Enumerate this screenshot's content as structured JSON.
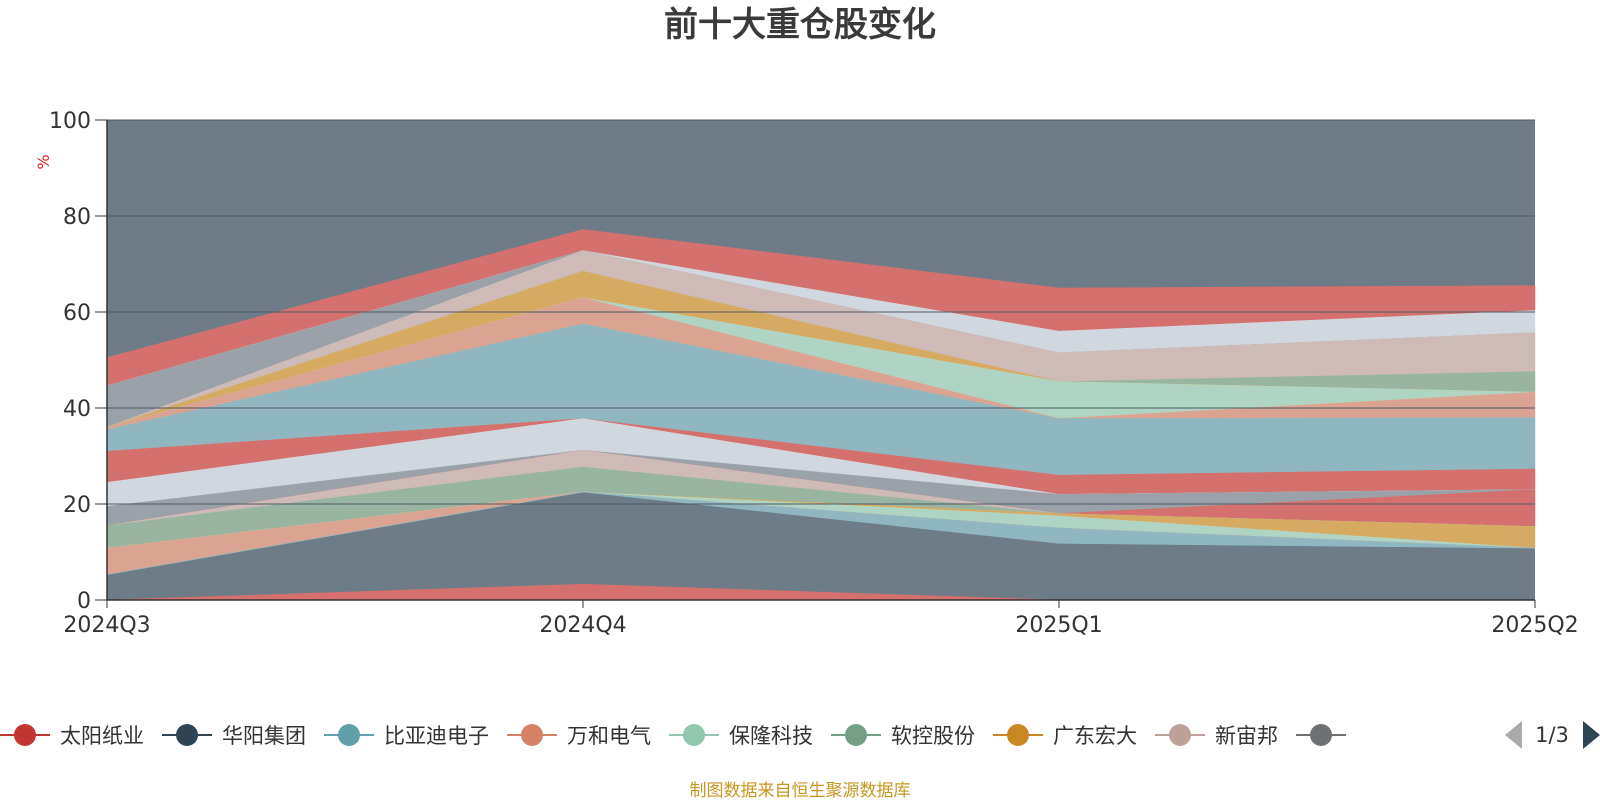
{
  "chart_data": {
    "type": "area",
    "title": "前十大重仓股变化",
    "ylabel": "%",
    "ylim": [
      0,
      100
    ],
    "yticks": [
      0,
      20,
      40,
      60,
      80,
      100
    ],
    "categories": [
      "2024Q3",
      "2024Q4",
      "2025Q1",
      "2025Q2"
    ],
    "grid": true,
    "background_color": "#6e7c88",
    "bands": [
      {
        "color": "#d9706d",
        "lower": [
          0,
          0,
          0,
          0
        ],
        "upper": [
          0,
          3.3,
          0,
          0
        ]
      },
      {
        "color": "#d9706d",
        "lower": [
          44.6,
          72.8,
          56.0,
          60.3
        ],
        "upper": [
          50.5,
          77.2,
          65.0,
          65.5
        ]
      },
      {
        "color": "#d6dce3",
        "lower": [
          44.6,
          72.8,
          51.5,
          55.7
        ],
        "upper": [
          44.6,
          72.8,
          56.0,
          60.3
        ]
      },
      {
        "color": "#9ca3ab",
        "lower": [
          36.0,
          72.8,
          51.5,
          55.7
        ],
        "upper": [
          44.6,
          72.8,
          51.5,
          55.7
        ]
      },
      {
        "color": "#d3bfb9",
        "lower": [
          36.0,
          68.5,
          45.5,
          47.6
        ],
        "upper": [
          36.0,
          72.8,
          51.5,
          55.7
        ]
      },
      {
        "color": "#9cb7a3",
        "lower": [
          36.0,
          68.5,
          45.5,
          43.3
        ],
        "upper": [
          36.0,
          68.5,
          45.5,
          47.6
        ]
      },
      {
        "color": "#dcad62",
        "lower": [
          36.0,
          63.0,
          45.5,
          43.3
        ],
        "upper": [
          36.0,
          68.5,
          45.5,
          43.3
        ]
      },
      {
        "color": "#b2d9c6",
        "lower": [
          36.0,
          63.0,
          37.8,
          43.3
        ],
        "upper": [
          36.0,
          63.0,
          45.5,
          43.3
        ]
      },
      {
        "color": "#e0a792",
        "lower": [
          35.5,
          57.5,
          37.8,
          38.0
        ],
        "upper": [
          36.0,
          63.0,
          37.8,
          43.3
        ]
      },
      {
        "color": "#91bbc3",
        "lower": [
          31.0,
          37.8,
          26.0,
          27.3
        ],
        "upper": [
          35.5,
          57.5,
          37.8,
          38.0
        ]
      },
      {
        "color": "#d9706d",
        "lower": [
          24.5,
          37.8,
          22.0,
          23.0
        ],
        "upper": [
          31.0,
          37.8,
          26.0,
          27.3
        ]
      },
      {
        "color": "#d6dce3",
        "lower": [
          19.5,
          31.2,
          22.0,
          23.0
        ],
        "upper": [
          24.5,
          37.8,
          22.0,
          23.0
        ]
      },
      {
        "color": "#9ca3ab",
        "lower": [
          15.5,
          31.2,
          18.0,
          23.0
        ],
        "upper": [
          19.5,
          31.2,
          22.0,
          23.0
        ]
      },
      {
        "color": "#d9706d",
        "lower": [
          15.5,
          31.2,
          18.0,
          15.3
        ],
        "upper": [
          15.5,
          31.2,
          18.0,
          23.0
        ]
      },
      {
        "color": "#d3bfb9",
        "lower": [
          15.5,
          27.7,
          18.0,
          15.3
        ],
        "upper": [
          15.5,
          31.2,
          18.0,
          15.3
        ]
      },
      {
        "color": "#9cb7a3",
        "lower": [
          10.8,
          22.5,
          18.0,
          15.3
        ],
        "upper": [
          15.5,
          27.7,
          18.0,
          15.3
        ]
      },
      {
        "color": "#dcad62",
        "lower": [
          10.8,
          22.5,
          17.5,
          10.8
        ],
        "upper": [
          10.8,
          22.5,
          18.0,
          15.3
        ]
      },
      {
        "color": "#b2d9c6",
        "lower": [
          10.8,
          22.5,
          15.0,
          10.8
        ],
        "upper": [
          10.8,
          22.5,
          17.5,
          10.8
        ]
      },
      {
        "color": "#e0a792",
        "lower": [
          5.3,
          22.5,
          15.0,
          10.8
        ],
        "upper": [
          10.8,
          22.5,
          15.0,
          10.8
        ]
      },
      {
        "color": "#91bbc3",
        "lower": [
          5.3,
          22.5,
          11.8,
          10.8
        ],
        "upper": [
          5.3,
          22.5,
          15.0,
          10.8
        ]
      }
    ]
  },
  "legend": {
    "items": [
      {
        "name": "太阳纸业",
        "color": "#c23531"
      },
      {
        "name": "华阳集团",
        "color": "#2f4554"
      },
      {
        "name": "比亚迪电子",
        "color": "#61a0a8"
      },
      {
        "name": "万和电气",
        "color": "#d48265"
      },
      {
        "name": "保隆科技",
        "color": "#91c7ae"
      },
      {
        "name": "软控股份",
        "color": "#749f83"
      },
      {
        "name": "广东宏大",
        "color": "#ca8622"
      },
      {
        "name": "新宙邦",
        "color": "#bda29a"
      },
      {
        "name": "",
        "color": "#6e7074"
      }
    ],
    "page": "1/3"
  },
  "source": "制图数据来自恒生聚源数据库"
}
